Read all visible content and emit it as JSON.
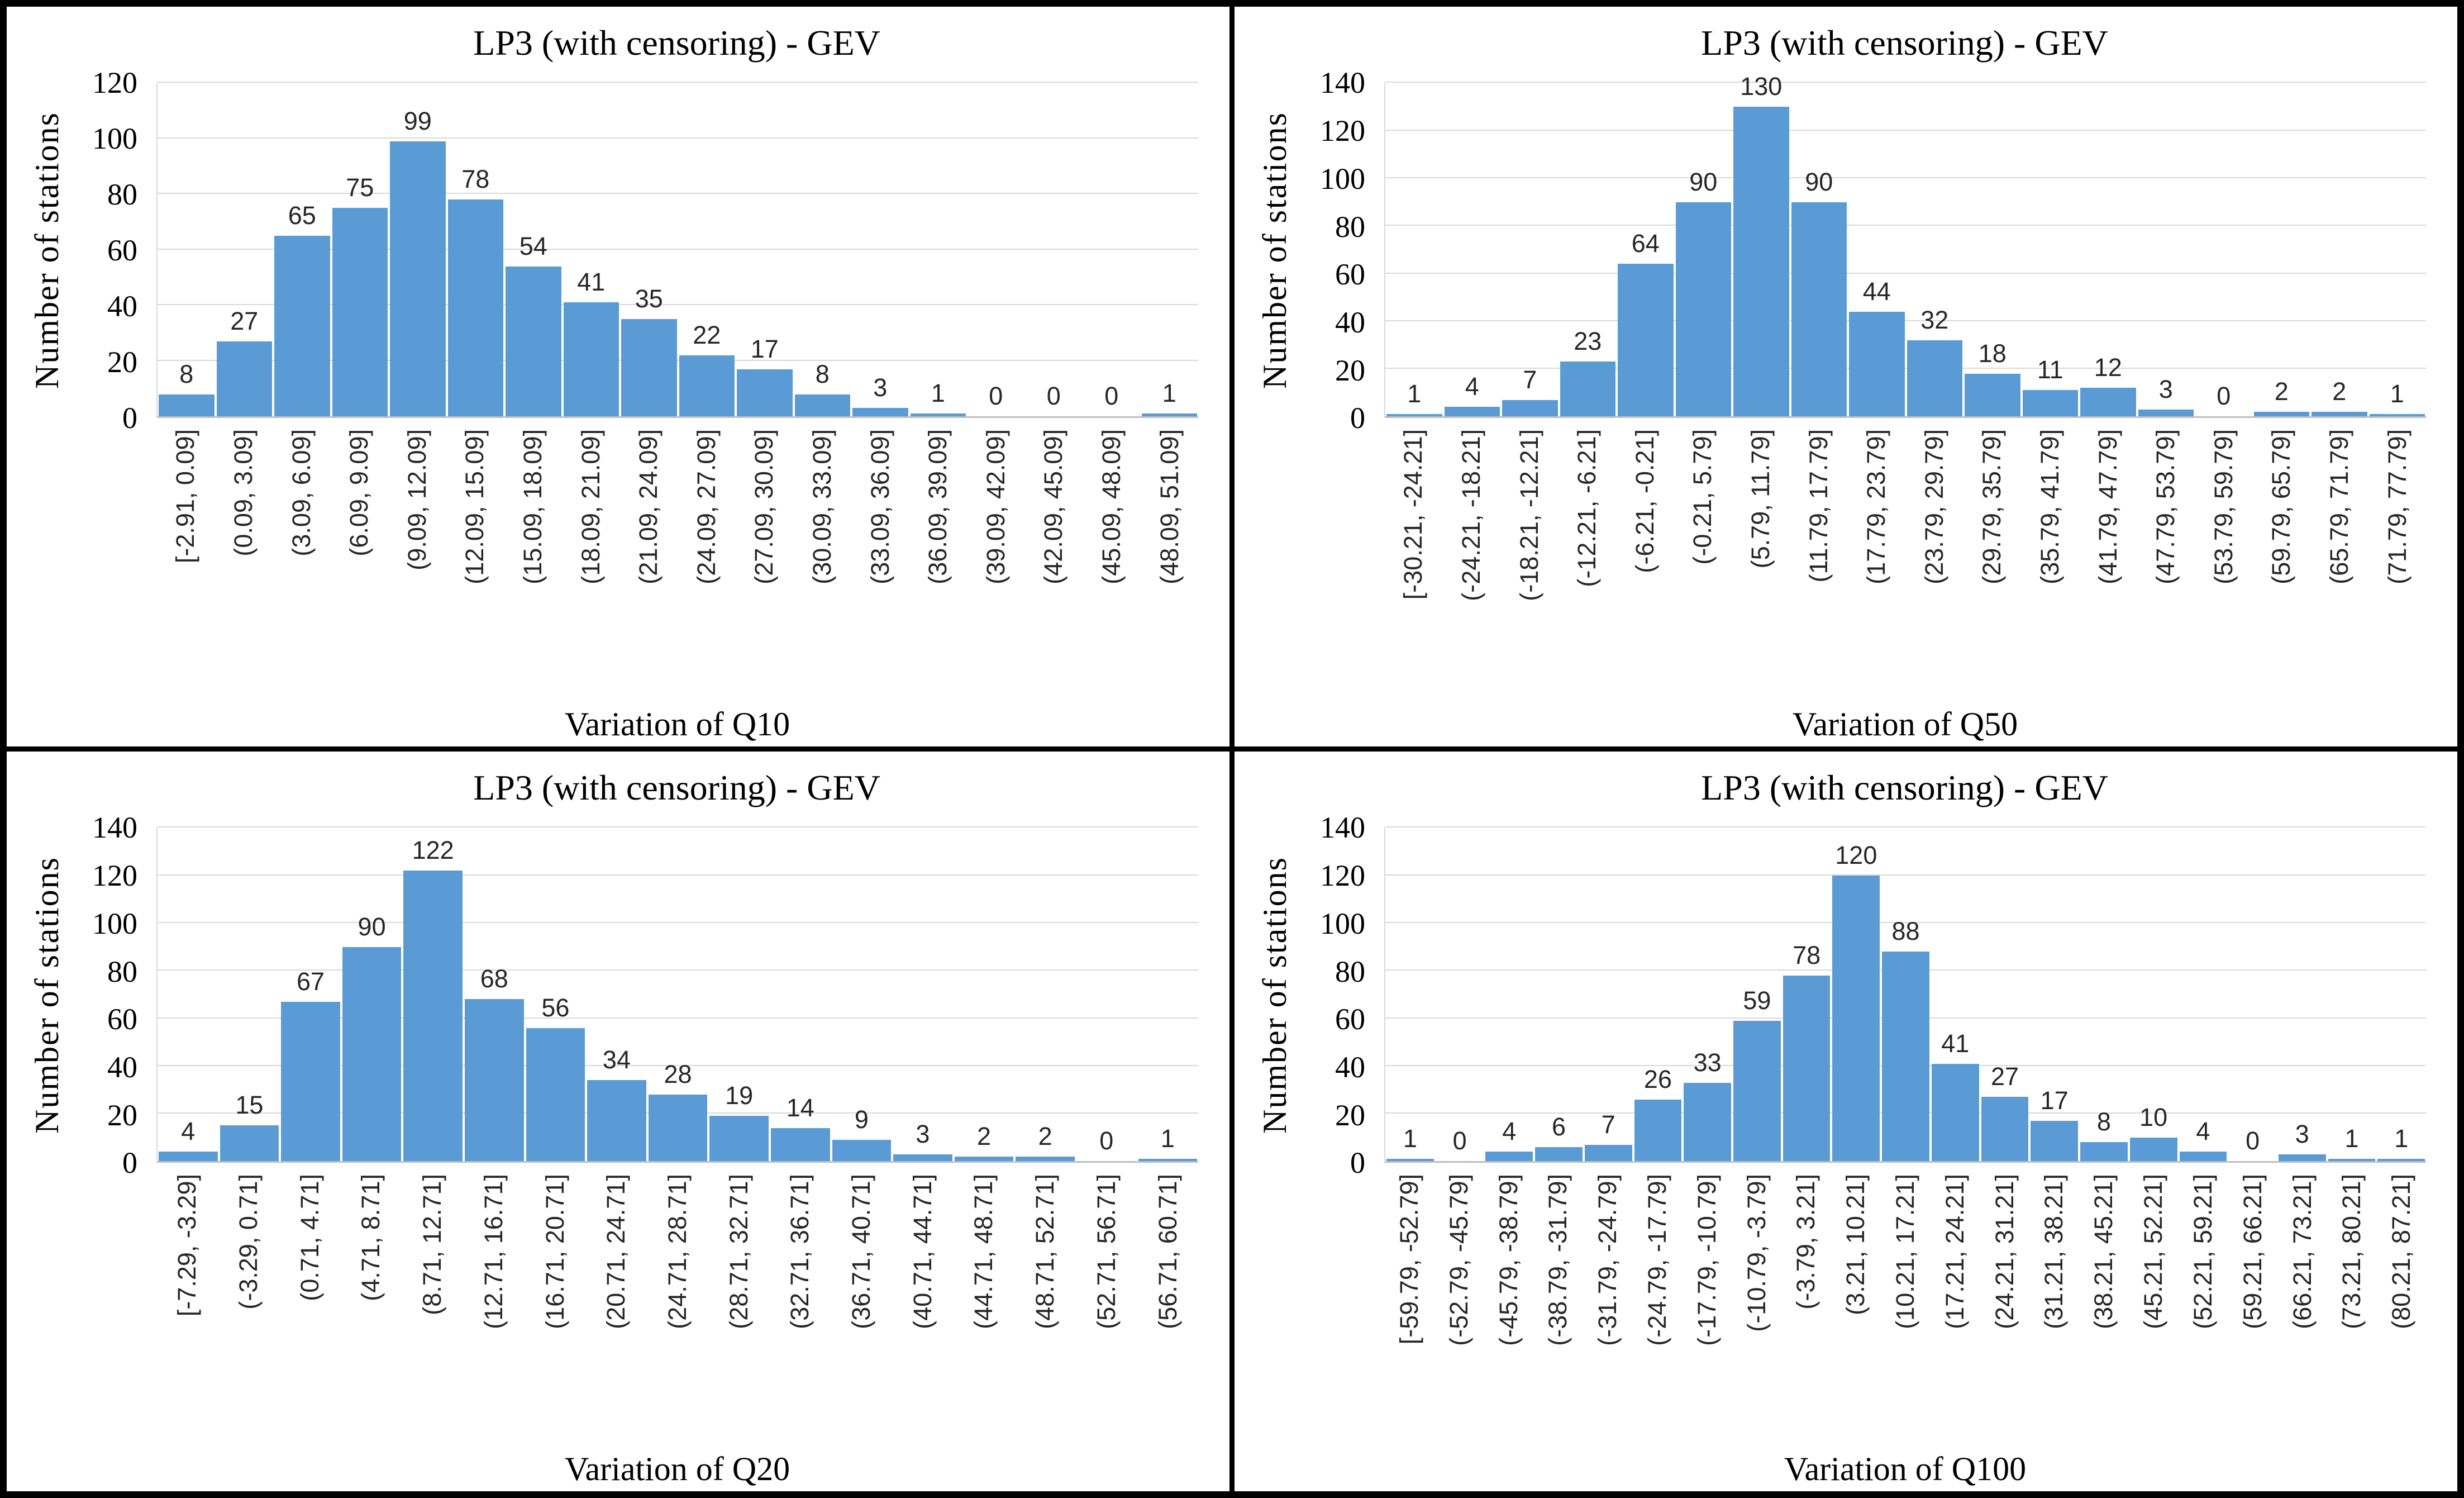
{
  "style": {
    "bar_color": "#5b9bd5",
    "gridline_color": "#d9d9d9",
    "axis_line_color": "#bfbfbf",
    "frame_color": "#000000",
    "label_color": "#262626"
  },
  "chart_data": [
    {
      "type": "bar",
      "grid_position": "top-left",
      "title": "LP3 (with censoring) - GEV",
      "xlabel": "Variation of Q10",
      "ylabel": "Number of stations",
      "ylim": [
        0,
        120
      ],
      "yticks": [
        0,
        20,
        40,
        60,
        80,
        100,
        120
      ],
      "grid": true,
      "legend": "none",
      "categories": [
        "[-2.91, 0.09]",
        "(0.09, 3.09]",
        "(3.09, 6.09]",
        "(6.09, 9.09]",
        "(9.09, 12.09]",
        "(12.09, 15.09]",
        "(15.09, 18.09]",
        "(18.09, 21.09]",
        "(21.09, 24.09]",
        "(24.09, 27.09]",
        "(27.09, 30.09]",
        "(30.09, 33.09]",
        "(33.09, 36.09]",
        "(36.09, 39.09]",
        "(39.09, 42.09]",
        "(42.09, 45.09]",
        "(45.09, 48.09]",
        "(48.09, 51.09]"
      ],
      "values": [
        8,
        27,
        65,
        75,
        99,
        78,
        54,
        41,
        35,
        22,
        17,
        8,
        3,
        1,
        0,
        0,
        0,
        1
      ]
    },
    {
      "type": "bar",
      "grid_position": "top-right",
      "title": "LP3 (with censoring) - GEV",
      "xlabel": "Variation of Q50",
      "ylabel": "Number of stations",
      "ylim": [
        0,
        140
      ],
      "yticks": [
        0,
        20,
        40,
        60,
        80,
        100,
        120,
        140
      ],
      "grid": true,
      "legend": "none",
      "categories": [
        "[-30.21, -24.21]",
        "(-24.21, -18.21]",
        "(-18.21, -12.21]",
        "(-12.21, -6.21]",
        "(-6.21, -0.21]",
        "(-0.21, 5.79]",
        "(5.79, 11.79]",
        "(11.79, 17.79]",
        "(17.79, 23.79]",
        "(23.79, 29.79]",
        "(29.79, 35.79]",
        "(35.79, 41.79]",
        "(41.79, 47.79]",
        "(47.79, 53.79]",
        "(53.79, 59.79]",
        "(59.79, 65.79]",
        "(65.79, 71.79]",
        "(71.79, 77.79]"
      ],
      "values": [
        1,
        4,
        7,
        23,
        64,
        90,
        130,
        90,
        44,
        32,
        18,
        11,
        12,
        3,
        0,
        2,
        2,
        1
      ]
    },
    {
      "type": "bar",
      "grid_position": "bottom-left",
      "title": "LP3 (with censoring) - GEV",
      "xlabel": "Variation of Q20",
      "ylabel": "Number of stations",
      "ylim": [
        0,
        140
      ],
      "yticks": [
        0,
        20,
        40,
        60,
        80,
        100,
        120,
        140
      ],
      "grid": true,
      "legend": "none",
      "categories": [
        "[-7.29, -3.29]",
        "(-3.29, 0.71]",
        "(0.71, 4.71]",
        "(4.71, 8.71]",
        "(8.71, 12.71]",
        "(12.71, 16.71]",
        "(16.71, 20.71]",
        "(20.71, 24.71]",
        "(24.71, 28.71]",
        "(28.71, 32.71]",
        "(32.71, 36.71]",
        "(36.71, 40.71]",
        "(40.71, 44.71]",
        "(44.71, 48.71]",
        "(48.71, 52.71]",
        "(52.71, 56.71]",
        "(56.71, 60.71]"
      ],
      "values": [
        4,
        15,
        67,
        90,
        122,
        68,
        56,
        34,
        28,
        19,
        14,
        9,
        3,
        2,
        2,
        0,
        1
      ]
    },
    {
      "type": "bar",
      "grid_position": "bottom-right",
      "title": "LP3 (with censoring) - GEV",
      "xlabel": "Variation of Q100",
      "ylabel": "Number of stations",
      "ylim": [
        0,
        140
      ],
      "yticks": [
        0,
        20,
        40,
        60,
        80,
        100,
        120,
        140
      ],
      "grid": true,
      "legend": "none",
      "categories": [
        "[-59.79, -52.79]",
        "(-52.79, -45.79]",
        "(-45.79, -38.79]",
        "(-38.79, -31.79]",
        "(-31.79, -24.79]",
        "(-24.79, -17.79]",
        "(-17.79, -10.79]",
        "(-10.79, -3.79]",
        "(-3.79, 3.21]",
        "(3.21, 10.21]",
        "(10.21, 17.21]",
        "(17.21, 24.21]",
        "(24.21, 31.21]",
        "(31.21, 38.21]",
        "(38.21, 45.21]",
        "(45.21, 52.21]",
        "(52.21, 59.21]",
        "(59.21, 66.21]",
        "(66.21, 73.21]",
        "(73.21, 80.21]",
        "(80.21, 87.21]"
      ],
      "values": [
        1,
        0,
        4,
        6,
        7,
        26,
        33,
        59,
        78,
        120,
        88,
        41,
        27,
        17,
        8,
        10,
        4,
        0,
        3,
        1,
        1
      ]
    }
  ]
}
